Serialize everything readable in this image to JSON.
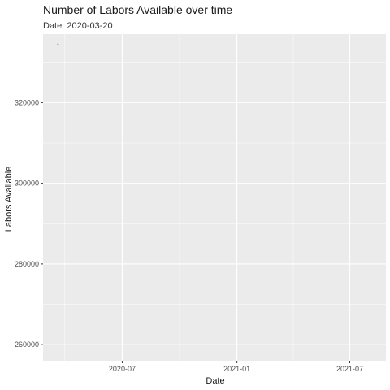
{
  "chart_data": {
    "type": "scatter",
    "title": "Number of Labors Available over time",
    "subtitle": "Date: 2020-03-20",
    "xlabel": "Date",
    "ylabel": "Labors Available",
    "x_scale": "date",
    "xlim": [
      "2020-02-25",
      "2021-08-28"
    ],
    "ylim": [
      256000,
      337000
    ],
    "x_ticks": [
      {
        "value": "2020-07-01",
        "label": "2020-07"
      },
      {
        "value": "2021-01-01",
        "label": "2021-01"
      },
      {
        "value": "2021-07-01",
        "label": "2021-07"
      }
    ],
    "y_ticks": [
      {
        "value": 260000,
        "label": "260000"
      },
      {
        "value": 280000,
        "label": "280000"
      },
      {
        "value": 300000,
        "label": "300000"
      },
      {
        "value": 320000,
        "label": "320000"
      }
    ],
    "points": [
      {
        "x": "2020-03-20",
        "y": 334500
      }
    ],
    "point_color": "#c0392b",
    "panel_background": "#ebebeb",
    "grid_color": "#ffffff",
    "grid": true,
    "legend": "none"
  }
}
